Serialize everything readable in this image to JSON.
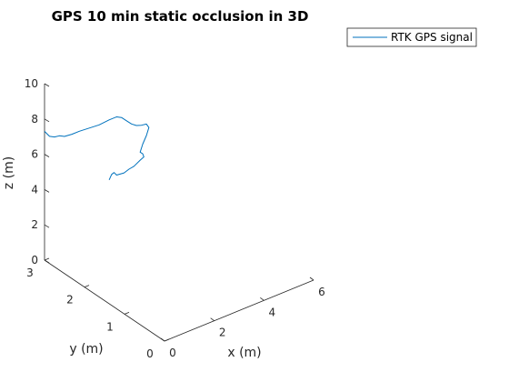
{
  "chart_data": {
    "type": "line",
    "projection": "3d",
    "title": "GPS 10 min static occlusion in 3D",
    "xlabel": "x (m)",
    "ylabel": "y (m)",
    "zlabel": "z (m)",
    "xlim": [
      0,
      6
    ],
    "ylim": [
      0,
      3
    ],
    "zlim": [
      0,
      10
    ],
    "xticks": [
      0,
      2,
      4,
      6
    ],
    "yticks": [
      0,
      1,
      2,
      3
    ],
    "zticks": [
      0,
      2,
      4,
      6,
      8,
      10
    ],
    "legend": {
      "entries": [
        "RTK GPS signal"
      ],
      "placement": "top-right"
    },
    "grid": false,
    "series": [
      {
        "name": "RTK GPS signal",
        "color": "#0072bd",
        "points": [
          [
            0.0,
            3.0,
            7.3
          ],
          [
            0.1,
            3.0,
            7.1
          ],
          [
            0.2,
            3.0,
            6.9
          ],
          [
            0.4,
            3.0,
            6.75
          ],
          [
            0.6,
            3.0,
            6.7
          ],
          [
            0.8,
            3.0,
            6.55
          ],
          [
            1.1,
            3.0,
            6.5
          ],
          [
            1.4,
            3.0,
            6.5
          ],
          [
            1.8,
            3.0,
            6.45
          ],
          [
            2.2,
            3.0,
            6.4
          ],
          [
            2.6,
            3.0,
            6.45
          ],
          [
            2.9,
            3.0,
            6.45
          ],
          [
            3.1,
            3.0,
            6.3
          ],
          [
            3.3,
            3.0,
            6.0
          ],
          [
            3.5,
            3.0,
            5.7
          ],
          [
            3.7,
            3.0,
            5.5
          ],
          [
            3.9,
            3.0,
            5.4
          ],
          [
            4.1,
            3.0,
            5.35
          ],
          [
            4.2,
            3.0,
            5.1
          ],
          [
            4.1,
            3.0,
            4.7
          ],
          [
            3.95,
            3.0,
            4.3
          ],
          [
            3.85,
            3.0,
            3.9
          ],
          [
            3.95,
            3.0,
            3.75
          ],
          [
            4.0,
            3.0,
            3.55
          ],
          [
            3.85,
            3.0,
            3.45
          ],
          [
            3.6,
            3.0,
            3.25
          ],
          [
            3.4,
            3.0,
            3.2
          ],
          [
            3.2,
            3.0,
            3.1
          ],
          [
            2.9,
            3.0,
            3.15
          ],
          [
            2.8,
            3.0,
            3.35
          ],
          [
            2.7,
            3.0,
            3.3
          ],
          [
            2.6,
            3.0,
            3.05
          ]
        ]
      }
    ]
  }
}
